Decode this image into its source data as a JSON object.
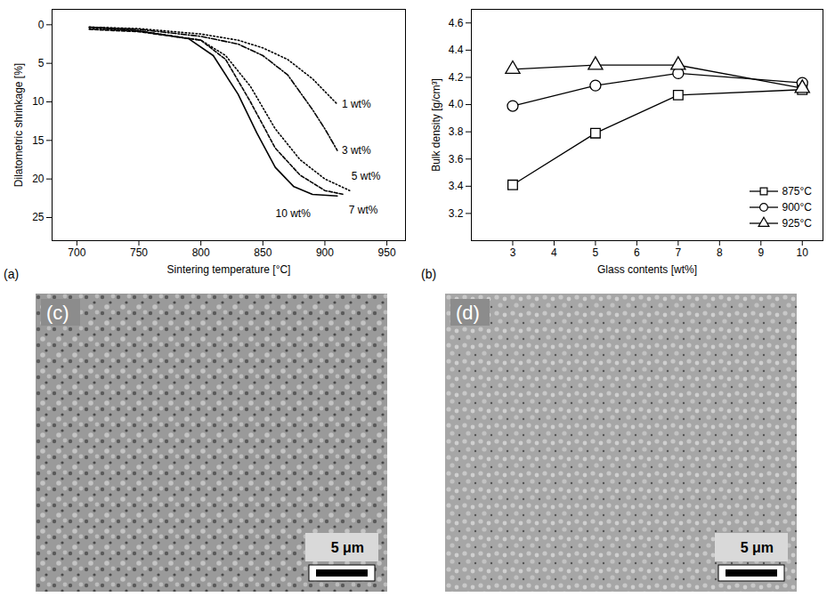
{
  "chart_data": [
    {
      "type": "line",
      "panel": "(a)",
      "x_label": "Sintering temperature [°C]",
      "y_label": "Dilatometric shrinkage [%]",
      "xlim": [
        680,
        965
      ],
      "xticks": [
        700,
        750,
        800,
        850,
        900,
        950
      ],
      "ylim": [
        28,
        -2
      ],
      "yticks": [
        0,
        5,
        10,
        15,
        20,
        25
      ],
      "series": [
        {
          "name": "1 wt%",
          "color": "#000000",
          "line_style": "dotted",
          "x": [
            710,
            750,
            800,
            830,
            850,
            870,
            890,
            910
          ],
          "values": [
            0.3,
            0.5,
            1.2,
            2.0,
            3.0,
            4.5,
            7.0,
            10.3
          ]
        },
        {
          "name": "3 wt%",
          "color": "#000000",
          "line_style": "dashdot",
          "x": [
            710,
            750,
            800,
            830,
            850,
            870,
            890,
            900,
            910
          ],
          "values": [
            0.3,
            0.6,
            1.5,
            2.5,
            4.0,
            6.5,
            11.0,
            13.5,
            16.3
          ]
        },
        {
          "name": "5 wt%",
          "color": "#000000",
          "line_style": "dotted",
          "x": [
            710,
            750,
            800,
            820,
            840,
            860,
            880,
            900,
            920
          ],
          "values": [
            0.5,
            0.8,
            2.0,
            4.0,
            8.0,
            13.5,
            17.5,
            20.0,
            21.5
          ]
        },
        {
          "name": "7 wt%",
          "color": "#000000",
          "line_style": "dashed",
          "x": [
            710,
            750,
            800,
            820,
            840,
            860,
            880,
            900,
            915
          ],
          "values": [
            0.6,
            0.9,
            2.0,
            4.5,
            10.0,
            16.0,
            19.5,
            21.5,
            22.0
          ]
        },
        {
          "name": "10 wt%",
          "color": "#000000",
          "line_style": "solid",
          "x": [
            710,
            750,
            790,
            810,
            830,
            845,
            860,
            875,
            890,
            910
          ],
          "values": [
            0.3,
            0.8,
            1.8,
            4.0,
            9.0,
            14.0,
            18.5,
            21.0,
            22.0,
            22.2
          ]
        }
      ]
    },
    {
      "type": "line",
      "panel": "(b)",
      "x_label": "Glass contents [wt%]",
      "y_label": "Bulk density [g/cm³]",
      "x": [
        3,
        5,
        7,
        10
      ],
      "xlim": [
        2,
        10.5
      ],
      "xticks": [
        3,
        4,
        5,
        6,
        7,
        8,
        9,
        10
      ],
      "ylim": [
        3.0,
        4.7
      ],
      "yticks": [
        3.2,
        3.4,
        3.6,
        3.8,
        {
          "value": 4,
          "label": "4.0"
        },
        4.2,
        4.4,
        4.6
      ],
      "legend": "lower right",
      "series": [
        {
          "name": "875°C",
          "color": "#000000",
          "marker": "square",
          "line_style": "solid",
          "values": [
            3.41,
            3.79,
            4.07,
            4.11
          ]
        },
        {
          "name": "900°C",
          "color": "#000000",
          "marker": "circle",
          "line_style": "solid",
          "values": [
            3.99,
            4.14,
            4.23,
            4.16
          ]
        },
        {
          "name": "925°C",
          "color": "#000000",
          "marker": "triangle",
          "line_style": "solid",
          "values": [
            4.26,
            4.29,
            4.29,
            4.12
          ]
        }
      ]
    }
  ],
  "images": [
    {
      "label": "(c)",
      "scale_bar": "5 μm"
    },
    {
      "label": "(d)",
      "scale_bar": "5 μm"
    }
  ]
}
